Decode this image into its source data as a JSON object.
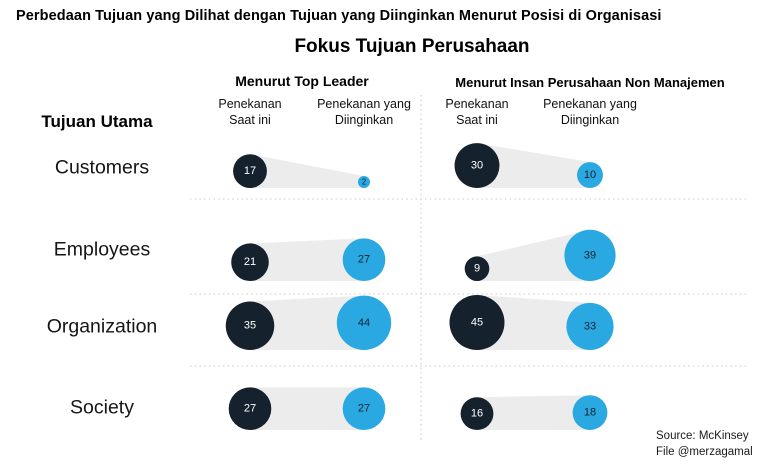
{
  "header": {
    "title": "Perbedaan Tujuan yang Dilihat dengan Tujuan yang Diinginkan Menurut Posisi di Organisasi",
    "subtitle": "Fokus Tujuan Perusahaan"
  },
  "footer": {
    "source": "Source: McKinsey",
    "file": "File @merzagamal"
  },
  "chart_data": {
    "type": "proportional-bubble-comparison",
    "title": "Fokus Tujuan Perusahaan",
    "row_header": "Tujuan Utama",
    "groups": [
      {
        "label": "Menurut Top Leader",
        "columns": [
          "Penekanan Saat ini",
          "Penekanan yang Diinginkan"
        ]
      },
      {
        "label": "Menurut Insan Perusahaan Non Manajemen",
        "columns": [
          "Penekanan Saat ini",
          "Penekanan yang Diinginkan"
        ]
      }
    ],
    "rows": [
      {
        "label": "Customers",
        "values": {
          "top_leader": {
            "current": 17,
            "desired": 2
          },
          "non_manajemen": {
            "current": 30,
            "desired": 10
          }
        }
      },
      {
        "label": "Employees",
        "values": {
          "top_leader": {
            "current": 21,
            "desired": 27
          },
          "non_manajemen": {
            "current": 9,
            "desired": 39
          }
        }
      },
      {
        "label": "Organization",
        "values": {
          "top_leader": {
            "current": 35,
            "desired": 44
          },
          "non_manajemen": {
            "current": 45,
            "desired": 33
          }
        }
      },
      {
        "label": "Society",
        "values": {
          "top_leader": {
            "current": 27,
            "desired": 27
          },
          "non_manajemen": {
            "current": 16,
            "desired": 18
          }
        }
      }
    ],
    "colors": {
      "current": "#15222E",
      "desired": "#29A8E2",
      "band": "#ECECEC",
      "separator": "#C8C8C8",
      "value_on_current": "#FFFFFF",
      "value_on_desired": "#15222E"
    },
    "sizing": "circle area proportional to value",
    "legend_position": "none",
    "grid": "dotted row/column separators"
  }
}
